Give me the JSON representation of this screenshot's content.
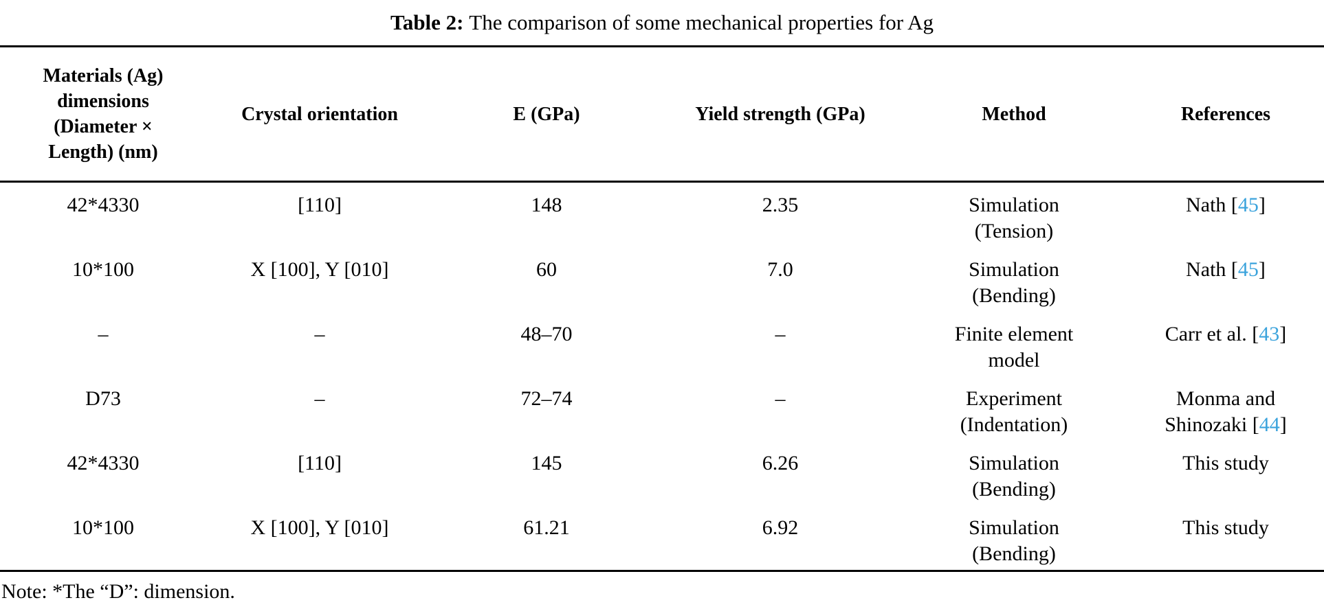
{
  "page": {
    "caption_label": "Table 2:",
    "caption_text": "The comparison of some mechanical properties for Ag",
    "note": "Note: *The “D”: dimension."
  },
  "colors": {
    "citation_blue": "#3ba3dc",
    "text": "#000000",
    "background": "#ffffff"
  },
  "table": {
    "columns": [
      "Materials (Ag)\ndimensions\n(Diameter ×\nLength) (nm)",
      "Crystal orientation",
      "E (GPa)",
      "Yield strength (GPa)",
      "Method",
      "References"
    ],
    "rows": [
      {
        "dimensions": "42*4330",
        "orientation": "[110]",
        "e_gpa": "148",
        "yield_gpa": "2.35",
        "method": "Simulation\n(Tension)",
        "ref_pre": "Nath [",
        "ref_cite": "45",
        "ref_post": "]"
      },
      {
        "dimensions": "10*100",
        "orientation": "X [100], Y [010]",
        "e_gpa": "60",
        "yield_gpa": "7.0",
        "method": "Simulation\n(Bending)",
        "ref_pre": "Nath [",
        "ref_cite": "45",
        "ref_post": "]"
      },
      {
        "dimensions": "–",
        "orientation": "–",
        "e_gpa": "48–70",
        "yield_gpa": "–",
        "method": "Finite element\nmodel",
        "ref_pre": "Carr et al. [",
        "ref_cite": "43",
        "ref_post": "]"
      },
      {
        "dimensions": "D73",
        "orientation": "–",
        "e_gpa": "72–74",
        "yield_gpa": "–",
        "method": "Experiment\n(Indentation)",
        "ref_pre": "Monma and\nShinozaki [",
        "ref_cite": "44",
        "ref_post": "]"
      },
      {
        "dimensions": "42*4330",
        "orientation": "[110]",
        "e_gpa": "145",
        "yield_gpa": "6.26",
        "method": "Simulation\n(Bending)",
        "ref_pre": "This study",
        "ref_cite": "",
        "ref_post": ""
      },
      {
        "dimensions": "10*100",
        "orientation": "X [100], Y [010]",
        "e_gpa": "61.21",
        "yield_gpa": "6.92",
        "method": "Simulation\n(Bending)",
        "ref_pre": "This study",
        "ref_cite": "",
        "ref_post": ""
      }
    ]
  }
}
